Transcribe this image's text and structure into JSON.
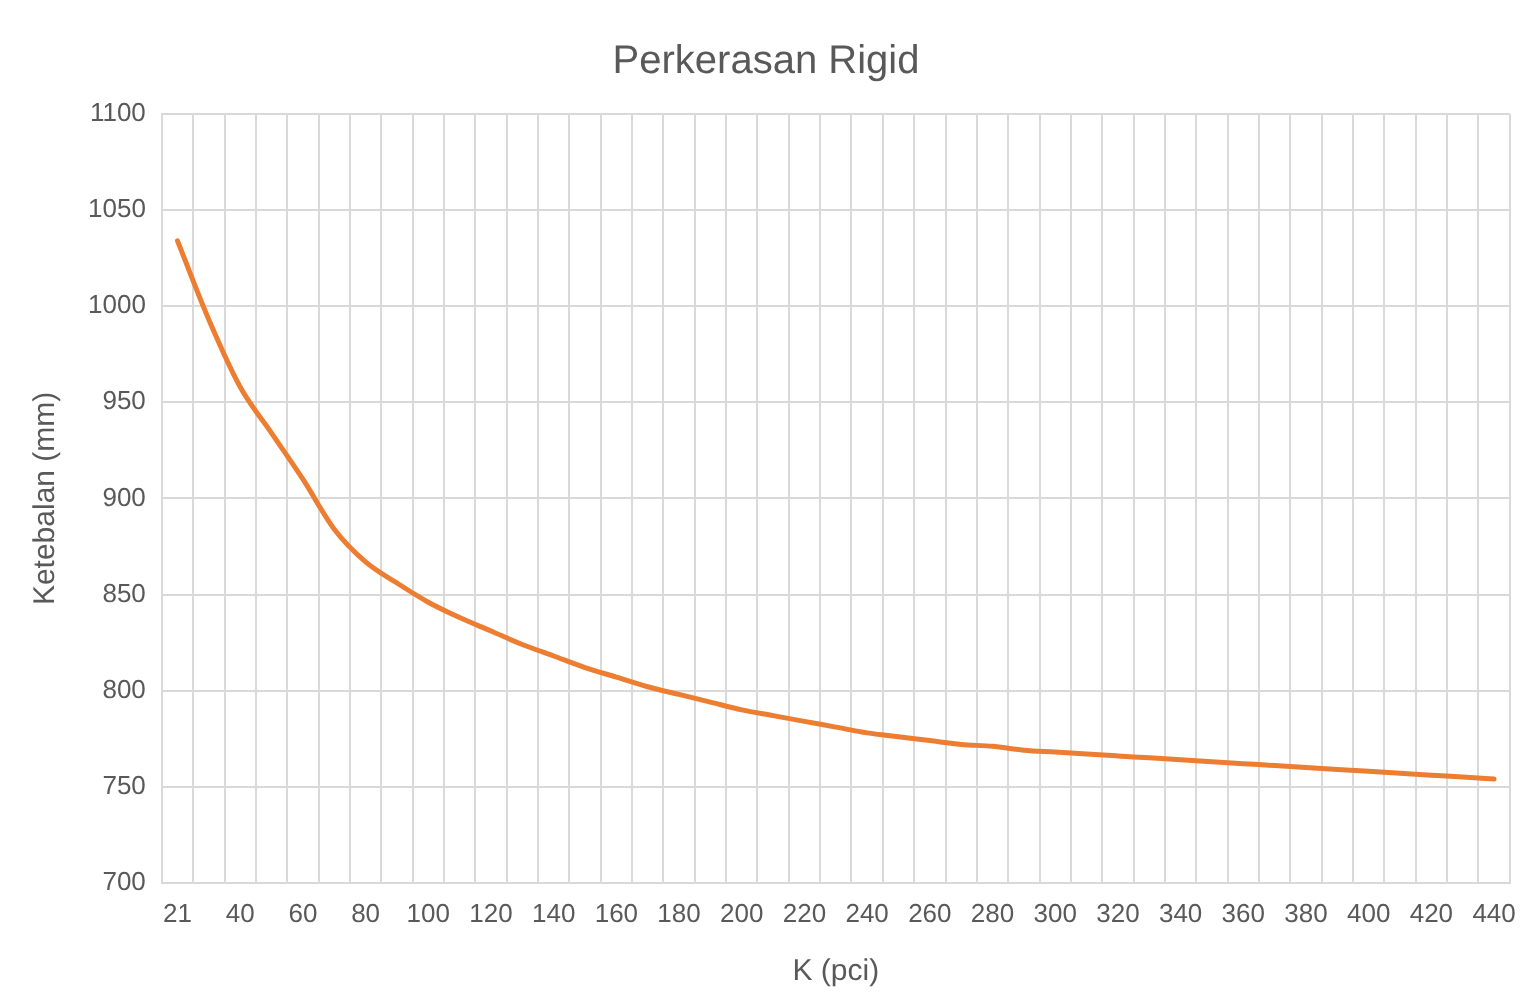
{
  "chart_data": {
    "type": "line",
    "title": "Perkerasan Rigid",
    "xlabel": "K (pci)",
    "ylabel": "Ketebalan (mm)",
    "categories": [
      "21",
      null,
      "40",
      null,
      "60",
      null,
      "80",
      null,
      "100",
      null,
      "120",
      null,
      "140",
      null,
      "160",
      null,
      "180",
      null,
      "200",
      null,
      "220",
      null,
      "240",
      null,
      "260",
      null,
      "280",
      null,
      "300",
      null,
      "320",
      null,
      "340",
      null,
      "360",
      null,
      "380",
      null,
      "400",
      null,
      "420",
      null,
      "440"
    ],
    "series": [
      {
        "color": "#ed7d31",
        "values": [
          1034,
          993,
          958,
          934,
          910,
          884,
          867,
          856,
          846,
          838,
          831,
          824,
          818,
          812,
          807,
          802,
          798,
          794,
          790,
          787,
          784,
          781,
          778,
          776,
          774,
          772,
          771,
          769,
          768,
          767,
          766,
          765,
          764,
          763,
          762,
          761,
          760,
          759,
          758,
          757,
          756,
          755,
          754
        ]
      }
    ],
    "ylim": [
      700,
      1100
    ],
    "yticks": [
      700,
      750,
      800,
      850,
      900,
      950,
      1000,
      1050,
      1100
    ],
    "grid": true,
    "marker": "none",
    "line_style": "solid",
    "legend": false
  }
}
